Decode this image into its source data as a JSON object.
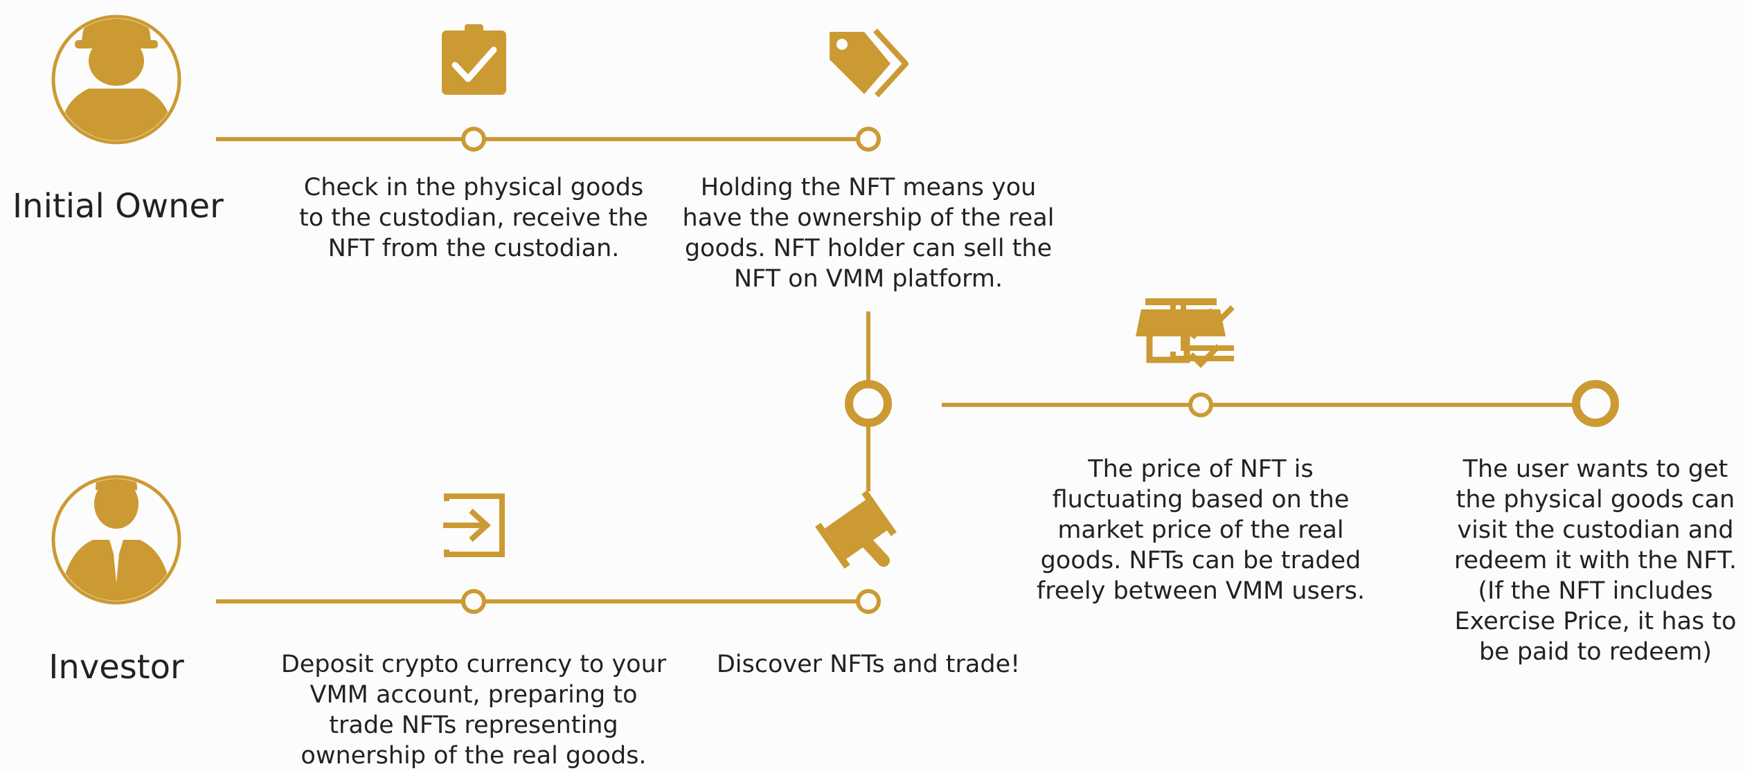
{
  "colors": {
    "accent": "#cc9a33",
    "background": "#fcfcfc",
    "text": "#222222"
  },
  "actors": {
    "initial_owner": {
      "label": "Initial Owner",
      "icon": "worker-avatar-icon"
    },
    "investor": {
      "label": "Investor",
      "icon": "businessman-avatar-icon"
    }
  },
  "steps": {
    "check_in": {
      "text": "Check in the physical goods\nto the custodian, receive the\nNFT from the custodian.",
      "icon": "clipboard-check-icon"
    },
    "holding": {
      "text": "Holding the NFT means you\nhave the ownership of the real\ngoods. NFT holder can sell the\nNFT on VMM platform.",
      "icon": "price-tags-icon"
    },
    "deposit": {
      "text": "Deposit crypto currency to your\nVMM account, preparing to\ntrade NFTs representing\nownership of the real goods.",
      "icon": "login-arrow-icon"
    },
    "discover": {
      "text": "Discover NFTs and trade!",
      "icon": "auction-gavel-icon"
    },
    "price": {
      "text": "The price of NFT is\nfluctuating based on the\nmarket price of the real\ngoods. NFTs can be traded\nfreely between VMM users.",
      "icon": "line-chart-icon"
    },
    "redeem": {
      "text": "The user wants to get\nthe physical goods can\nvisit the custodian and\nredeem it with the NFT.\n(If the NFT includes\nExercise Price, it has to\nbe paid to redeem)",
      "icon": "store-check-icon"
    }
  }
}
